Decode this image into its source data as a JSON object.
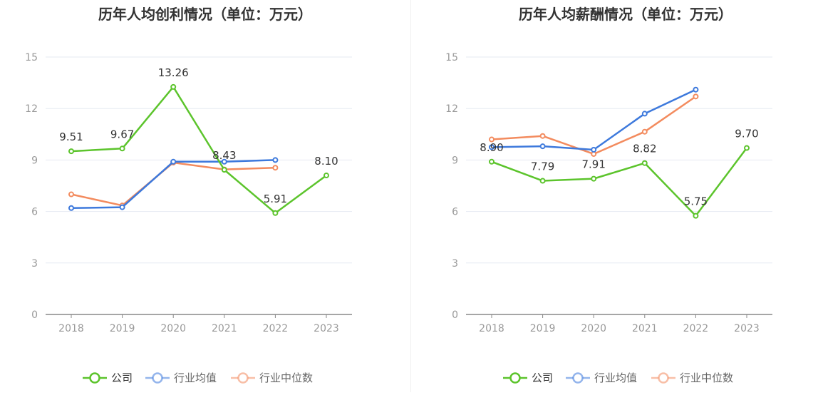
{
  "colors": {
    "company": "#5CC42C",
    "industry_avg": "#3D79DC",
    "industry_median": "#F38B5E",
    "axis": "#888888",
    "grid": "#E6EAF2",
    "tick": "#999999",
    "label": "#333333"
  },
  "legend": [
    "公司",
    "行业均值",
    "行业中位数"
  ],
  "chart_data": [
    {
      "type": "line",
      "title": "历年人均创利情况（单位：万元）",
      "categories": [
        "2018",
        "2019",
        "2020",
        "2021",
        "2022",
        "2023"
      ],
      "ylim": [
        0,
        15
      ],
      "yticks": [
        "0",
        "3",
        "6",
        "9",
        "12",
        "15"
      ],
      "grid": true,
      "legend_position": "bottom",
      "series": [
        {
          "name": "公司",
          "values": [
            9.51,
            9.67,
            13.26,
            8.43,
            5.91,
            8.1
          ],
          "labels": [
            "9.51",
            "9.67",
            "13.26",
            "8.43",
            "5.91",
            "8.10"
          ]
        },
        {
          "name": "行业均值",
          "values": [
            6.2,
            6.25,
            8.9,
            8.9,
            9.0,
            null
          ],
          "labels": []
        },
        {
          "name": "行业中位数",
          "values": [
            7.0,
            6.35,
            8.85,
            8.45,
            8.55,
            null
          ],
          "labels": []
        }
      ]
    },
    {
      "type": "line",
      "title": "历年人均薪酬情况（单位：万元）",
      "categories": [
        "2018",
        "2019",
        "2020",
        "2021",
        "2022",
        "2023"
      ],
      "ylim": [
        0,
        15
      ],
      "yticks": [
        "0",
        "3",
        "6",
        "9",
        "12",
        "15"
      ],
      "grid": true,
      "legend_position": "bottom",
      "series": [
        {
          "name": "公司",
          "values": [
            8.9,
            7.79,
            7.91,
            8.82,
            5.75,
            9.7
          ],
          "labels": [
            "8.90",
            "7.79",
            "7.91",
            "8.82",
            "5.75",
            "9.70"
          ]
        },
        {
          "name": "行业均值",
          "values": [
            9.75,
            9.8,
            9.6,
            11.7,
            13.1,
            null
          ],
          "labels": []
        },
        {
          "name": "行业中位数",
          "values": [
            10.2,
            10.4,
            9.35,
            10.65,
            12.7,
            null
          ],
          "labels": []
        }
      ]
    }
  ]
}
